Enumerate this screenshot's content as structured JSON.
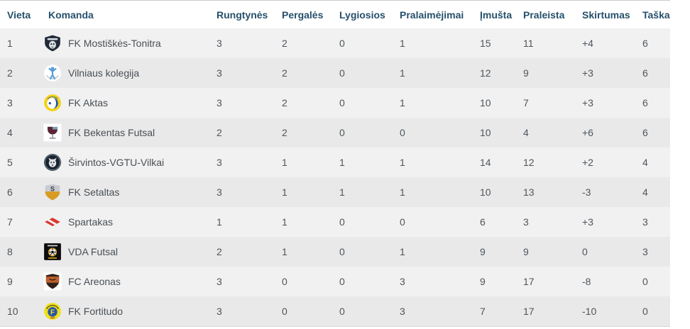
{
  "table": {
    "columns": [
      {
        "key": "vieta",
        "label": "Vieta"
      },
      {
        "key": "komanda",
        "label": "Komanda"
      },
      {
        "key": "rungtynes",
        "label": "Rungtynės"
      },
      {
        "key": "pergales",
        "label": "Pergalės"
      },
      {
        "key": "lygiosios",
        "label": "Lygiosios"
      },
      {
        "key": "pralaimejimai",
        "label": "Pralaimėjimai"
      },
      {
        "key": "imusta",
        "label": "Įmušta"
      },
      {
        "key": "praleista",
        "label": "Praleista"
      },
      {
        "key": "skirtumas",
        "label": "Skirtumas"
      },
      {
        "key": "taskai",
        "label": "Taškai"
      }
    ],
    "rows": [
      {
        "vieta": "1",
        "komanda": "FK Mostiškės-Tonitra",
        "logo": "mostiskes-tonitra",
        "rungtynes": "3",
        "pergales": "2",
        "lygiosios": "0",
        "pralaimejimai": "1",
        "imusta": "15",
        "praleista": "11",
        "skirtumas": "+4",
        "taskai": "6"
      },
      {
        "vieta": "2",
        "komanda": "Vilniaus kolegija",
        "logo": "vilniaus-kolegija",
        "rungtynes": "3",
        "pergales": "2",
        "lygiosios": "0",
        "pralaimejimai": "1",
        "imusta": "12",
        "praleista": "9",
        "skirtumas": "+3",
        "taskai": "6"
      },
      {
        "vieta": "3",
        "komanda": " FK Aktas",
        "logo": "fk-aktas",
        "rungtynes": "3",
        "pergales": "2",
        "lygiosios": "0",
        "pralaimejimai": "1",
        "imusta": "10",
        "praleista": "7",
        "skirtumas": "+3",
        "taskai": "6"
      },
      {
        "vieta": "4",
        "komanda": "FK Bekentas Futsal",
        "logo": "fk-bekentas",
        "rungtynes": "2",
        "pergales": "2",
        "lygiosios": "0",
        "pralaimejimai": "0",
        "imusta": "10",
        "praleista": "4",
        "skirtumas": "+6",
        "taskai": "6"
      },
      {
        "vieta": "5",
        "komanda": "Širvintos-VGTU-Vilkai",
        "logo": "sirvintos-vgtu-vilkai",
        "rungtynes": "3",
        "pergales": "1",
        "lygiosios": "1",
        "pralaimejimai": "1",
        "imusta": "14",
        "praleista": "12",
        "skirtumas": "+2",
        "taskai": "4"
      },
      {
        "vieta": "6",
        "komanda": "FK Setaltas",
        "logo": "fk-setaltas",
        "rungtynes": "3",
        "pergales": "1",
        "lygiosios": "1",
        "pralaimejimai": "1",
        "imusta": "10",
        "praleista": "13",
        "skirtumas": "-3",
        "taskai": "4"
      },
      {
        "vieta": "7",
        "komanda": "Spartakas",
        "logo": "spartakas",
        "rungtynes": "1",
        "pergales": "1",
        "lygiosios": "0",
        "pralaimejimai": "0",
        "imusta": "6",
        "praleista": "3",
        "skirtumas": "+3",
        "taskai": "3"
      },
      {
        "vieta": "8",
        "komanda": "VDA Futsal",
        "logo": "vda-futsal",
        "rungtynes": "2",
        "pergales": "1",
        "lygiosios": "0",
        "pralaimejimai": "1",
        "imusta": "9",
        "praleista": "9",
        "skirtumas": "0",
        "taskai": "3"
      },
      {
        "vieta": "9",
        "komanda": "FC Areonas",
        "logo": "fc-areonas",
        "rungtynes": "3",
        "pergales": "0",
        "lygiosios": "0",
        "pralaimejimai": "3",
        "imusta": "9",
        "praleista": "17",
        "skirtumas": "-8",
        "taskai": "0"
      },
      {
        "vieta": "10",
        "komanda": "FK Fortitudo",
        "logo": "fk-fortitudo",
        "rungtynes": "3",
        "pergales": "0",
        "lygiosios": "0",
        "pralaimejimai": "3",
        "imusta": "7",
        "praleista": "17",
        "skirtumas": "-10",
        "taskai": "0"
      }
    ]
  },
  "colors": {
    "header_text": "#26506b",
    "body_text": "#4e555c",
    "row_odd": "#f1f1f1",
    "row_even": "#e9e9e9",
    "border": "#cccccc"
  }
}
